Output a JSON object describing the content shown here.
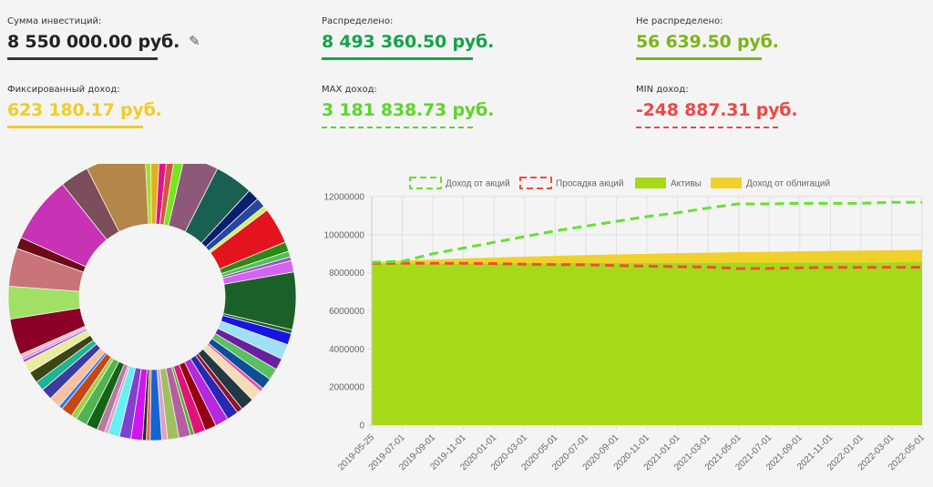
{
  "stats": [
    {
      "label": "Сумма инвестиций:",
      "value": "8 550 000.00 руб.",
      "color": "#222222",
      "underline": "solid",
      "icon": "pencil-icon"
    },
    {
      "label": "Распределено:",
      "value": "8 493 360.50 руб.",
      "color": "#15a34a",
      "underline": "solid"
    },
    {
      "label": "Не распределено:",
      "value": "56 639.50 руб.",
      "color": "#7cb518",
      "underline": "solid"
    },
    {
      "label": "Фиксированный доход:",
      "value": "623 180.17 руб.",
      "color": "#f0cc27",
      "underline": "solid"
    },
    {
      "label": "MAX доход:",
      "value": "3 181 838.73 руб.",
      "color": "#5ad62a",
      "underline": "dashed"
    },
    {
      "label": "MIN доход:",
      "value": "-248 887.31 руб.",
      "color": "#f04747",
      "underline": "dashed"
    }
  ],
  "chart_data": [
    {
      "type": "pie",
      "title": "",
      "donut": true,
      "slices": [
        {
          "value": 0.6,
          "color": "#a4e021"
        },
        {
          "value": 0.9,
          "color": "#e0b020"
        },
        {
          "value": 0.8,
          "color": "#e0148c"
        },
        {
          "value": 0.8,
          "color": "#d2563a"
        },
        {
          "value": 1.0,
          "color": "#78e61e"
        },
        {
          "value": 3.6,
          "color": "#8c5a78"
        },
        {
          "value": 4.0,
          "color": "#1a6050"
        },
        {
          "value": 1.2,
          "color": "#0a1e6e"
        },
        {
          "value": 1.0,
          "color": "#2846a0"
        },
        {
          "value": 0.5,
          "color": "#d4f060"
        },
        {
          "value": 3.8,
          "color": "#e4141e"
        },
        {
          "value": 1.0,
          "color": "#2a8a14"
        },
        {
          "value": 0.6,
          "color": "#50c050"
        },
        {
          "value": 0.4,
          "color": "#a050d0"
        },
        {
          "value": 1.2,
          "color": "#d464f0"
        },
        {
          "value": 6.0,
          "color": "#1a6028"
        },
        {
          "value": 0.4,
          "color": "#285a30"
        },
        {
          "value": 1.2,
          "color": "#1414e6"
        },
        {
          "value": 1.6,
          "color": "#a0e0f4"
        },
        {
          "value": 1.2,
          "color": "#6a1ea0"
        },
        {
          "value": 1.2,
          "color": "#5ac060"
        },
        {
          "value": 1.2,
          "color": "#0a5096"
        },
        {
          "value": 0.4,
          "color": "#f050a0"
        },
        {
          "value": 1.2,
          "color": "#f4dcb4"
        },
        {
          "value": 1.4,
          "color": "#243844"
        },
        {
          "value": 0.6,
          "color": "#8c1428"
        },
        {
          "value": 1.2,
          "color": "#2828b4"
        },
        {
          "value": 1.4,
          "color": "#b428e0"
        },
        {
          "value": 1.2,
          "color": "#960014"
        },
        {
          "value": 1.2,
          "color": "#e01478"
        },
        {
          "value": 0.4,
          "color": "#50b428"
        },
        {
          "value": 1.2,
          "color": "#b460a0"
        },
        {
          "value": 1.2,
          "color": "#a0c060"
        },
        {
          "value": 0.6,
          "color": "#e0a0c8"
        },
        {
          "value": 1.2,
          "color": "#1464d2"
        },
        {
          "value": 0.4,
          "color": "#f06450"
        },
        {
          "value": 0.4,
          "color": "#282828"
        },
        {
          "value": 1.2,
          "color": "#d214f0"
        },
        {
          "value": 1.2,
          "color": "#8040d0"
        },
        {
          "value": 1.2,
          "color": "#64f0f4"
        },
        {
          "value": 0.4,
          "color": "#e0a0d0"
        },
        {
          "value": 0.8,
          "color": "#b47aa0"
        },
        {
          "value": 1.2,
          "color": "#146414"
        },
        {
          "value": 1.2,
          "color": "#50b450"
        },
        {
          "value": 0.6,
          "color": "#a0d040"
        },
        {
          "value": 1.2,
          "color": "#c84614"
        },
        {
          "value": 0.4,
          "color": "#2878e6"
        },
        {
          "value": 1.2,
          "color": "#f8c0a0"
        },
        {
          "value": 1.2,
          "color": "#3c3ca0"
        },
        {
          "value": 1.0,
          "color": "#1eb496"
        },
        {
          "value": 1.2,
          "color": "#3c4614"
        },
        {
          "value": 1.2,
          "color": "#e8ec9c"
        },
        {
          "value": 0.3,
          "color": "#a050c8"
        },
        {
          "value": 0.3,
          "color": "#e096e6"
        },
        {
          "value": 0.3,
          "color": "#f0b4b4"
        },
        {
          "value": 3.8,
          "color": "#8c0028"
        },
        {
          "value": 3.4,
          "color": "#a0e064"
        },
        {
          "value": 4.0,
          "color": "#c87478"
        },
        {
          "value": 1.2,
          "color": "#6e0a1a"
        },
        {
          "value": 7.0,
          "color": "#c832b4"
        },
        {
          "value": 3.0,
          "color": "#7a4e5a"
        },
        {
          "value": 6.2,
          "color": "#b4864a"
        }
      ]
    },
    {
      "type": "area",
      "title": "",
      "xlabel": "",
      "ylabel": "",
      "ylim": [
        0,
        12000000
      ],
      "y_ticks": [
        "0",
        "2000000",
        "4000000",
        "6000000",
        "8000000",
        "10000000",
        "12000000"
      ],
      "x": [
        "2019-05-25",
        "2019-07-01",
        "2019-09-01",
        "2019-11-01",
        "2020-01-01",
        "2020-03-01",
        "2020-05-01",
        "2020-07-01",
        "2020-09-01",
        "2020-11-01",
        "2021-01-01",
        "2021-03-01",
        "2021-05-01",
        "2021-07-01",
        "2021-09-01",
        "2021-11-01",
        "2022-01-01",
        "2022-03-01",
        "2022-05-01"
      ],
      "grid": true,
      "legend_position": "top",
      "series": [
        {
          "name": "Доход от акций",
          "style": "dashed-line",
          "color": "#66e033",
          "values": [
            8550000,
            8600000,
            9000000,
            9300000,
            9600000,
            9900000,
            10200000,
            10450000,
            10700000,
            10950000,
            11150000,
            11400000,
            11620000,
            11620000,
            11650000,
            11650000,
            11650000,
            11700000,
            11700000
          ]
        },
        {
          "name": "Просадка акций",
          "style": "dashed-line",
          "color": "#f04c3c",
          "values": [
            8500000,
            8500000,
            8500000,
            8500000,
            8480000,
            8450000,
            8430000,
            8420000,
            8380000,
            8350000,
            8320000,
            8300000,
            8220000,
            8230000,
            8260000,
            8280000,
            8280000,
            8290000,
            8290000
          ]
        },
        {
          "name": "Активы",
          "style": "area",
          "color": "#a6d917",
          "values": [
            8493000,
            8493000,
            8495000,
            8497000,
            8500000,
            8503000,
            8506000,
            8510000,
            8513000,
            8516000,
            8520000,
            8524000,
            8528000,
            8532000,
            8536000,
            8540000,
            8545000,
            8550000,
            8555000
          ]
        },
        {
          "name": "Доход от облигаций",
          "style": "stacked-area",
          "color": "#f0d12a",
          "values": [
            57000,
            150000,
            200000,
            260000,
            300000,
            340000,
            380000,
            420000,
            450000,
            480000,
            510000,
            530000,
            560000,
            570000,
            590000,
            610000,
            620000,
            630000,
            650000
          ]
        }
      ]
    }
  ]
}
